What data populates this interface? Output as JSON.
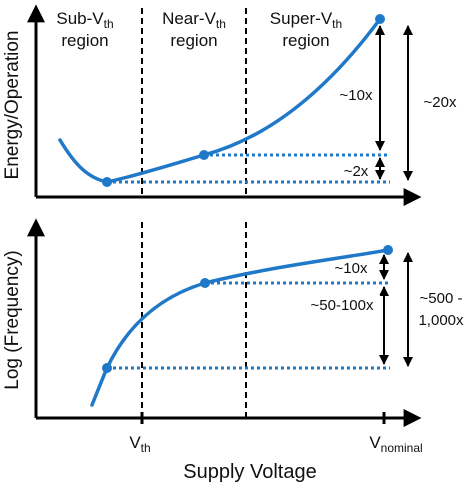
{
  "chart_data": [
    {
      "panel": "top",
      "type": "line",
      "ylabel": "Energy/Operation",
      "regions": [
        {
          "name": "Sub-V",
          "sub": "th",
          "line2": "region"
        },
        {
          "name": "Near-V",
          "sub": "th",
          "line2": "region"
        },
        {
          "name": "Super-V",
          "sub": "th",
          "line2": "region"
        }
      ],
      "marked_points": [
        "minimum energy",
        "near-threshold",
        "nominal"
      ],
      "annotations": [
        {
          "id": "ratio_near_vs_min",
          "text": "~2x"
        },
        {
          "id": "ratio_nominal_vs_near",
          "text": "~10x"
        },
        {
          "id": "ratio_nominal_vs_min",
          "text": "~20x"
        }
      ],
      "notes": "Energy per operation falls to a minimum in the sub-threshold region, then rises steeply toward the nominal supply voltage."
    },
    {
      "panel": "bottom",
      "type": "line",
      "ylabel": "Log (Frequency)",
      "xlabel": "Supply Voltage",
      "xticks": [
        {
          "main": "V",
          "sub": "th"
        },
        {
          "main": "V",
          "sub": "nominal"
        }
      ],
      "marked_points": [
        "sub-threshold",
        "near-threshold",
        "nominal"
      ],
      "annotations": [
        {
          "id": "ratio_nominal_vs_near",
          "text": "~10x"
        },
        {
          "id": "ratio_near_vs_sub",
          "text": "~50-100x"
        },
        {
          "id": "ratio_nominal_vs_sub",
          "text": "~500 -",
          "line2": "1,000x"
        }
      ],
      "notes": "Log frequency increases monotonically with supply voltage, flattening above the threshold voltage."
    }
  ],
  "colors": {
    "curve": "#1f78c8",
    "axis": "#000000",
    "text": "#111111"
  }
}
